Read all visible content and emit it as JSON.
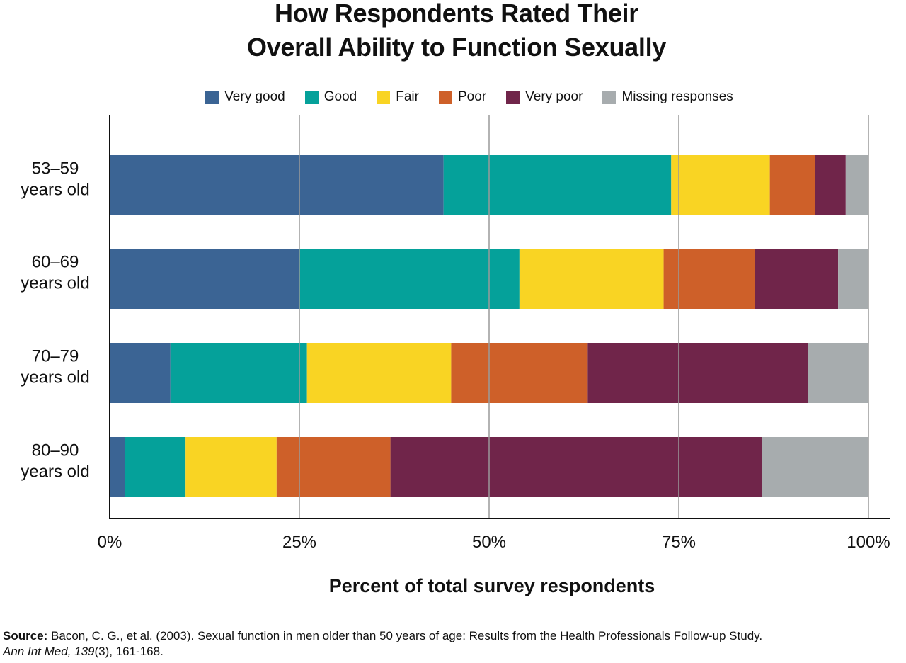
{
  "chart_data": {
    "type": "bar",
    "orientation": "horizontal",
    "stacked": true,
    "title": [
      "How Respondents Rated Their",
      "Overall Ability to Function Sexually"
    ],
    "xlabel": "Percent of total survey respondents",
    "ylabel": "",
    "xlim": [
      0,
      100
    ],
    "x_ticks": [
      "0%",
      "25%",
      "50%",
      "75%",
      "100%"
    ],
    "x_tick_values": [
      0,
      25,
      50,
      75,
      100
    ],
    "grid": true,
    "legend_position": "top-center",
    "categories": [
      [
        "53–59",
        "years old"
      ],
      [
        "60–69",
        "years old"
      ],
      [
        "70–79",
        "years old"
      ],
      [
        "80–90",
        "years old"
      ]
    ],
    "series": [
      {
        "name": "Very good",
        "color": "#3B6494",
        "values": [
          44,
          25,
          8,
          2
        ]
      },
      {
        "name": "Good",
        "color": "#05A19A",
        "values": [
          30,
          29,
          18,
          8
        ]
      },
      {
        "name": "Fair",
        "color": "#F9D423",
        "values": [
          13,
          19,
          19,
          12
        ]
      },
      {
        "name": "Poor",
        "color": "#CE6029",
        "values": [
          6,
          12,
          18,
          15
        ]
      },
      {
        "name": "Very poor",
        "color": "#70254A",
        "values": [
          4,
          11,
          29,
          49
        ]
      },
      {
        "name": "Missing responses",
        "color": "#A7ACAE",
        "values": [
          3,
          4,
          8,
          14
        ]
      }
    ]
  },
  "source": {
    "label": "Source:",
    "text": " Bacon, C. G., et al. (2003). Sexual function in men older than 50 years of age: Results from the Health Professionals Follow-up Study.",
    "journal": "Ann Int Med, 139",
    "citation_tail": "(3), 161-168."
  }
}
